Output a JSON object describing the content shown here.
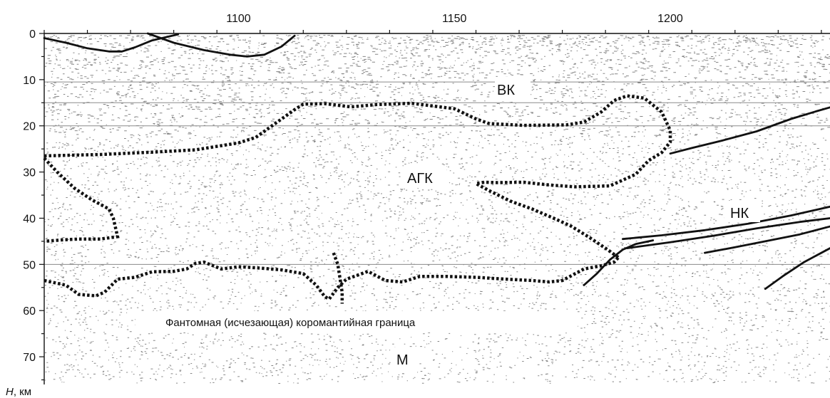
{
  "x_axis": {
    "ticks": [
      1100,
      1150,
      1200
    ],
    "range": [
      1055,
      1237
    ]
  },
  "y_axis": {
    "ticks": [
      0,
      10,
      20,
      30,
      40,
      50,
      60,
      70
    ],
    "range": [
      0,
      76
    ],
    "label_italic": "H",
    "label_unit": ", км"
  },
  "zones": {
    "vk": "ВК",
    "agk": "АГК",
    "nk": "НК",
    "m": "М"
  },
  "note": "Фантомная (исчезающая) коромантийная граница",
  "colors": {
    "ink": "#111111",
    "noise": "#222222",
    "background": "#ffffff",
    "gridline": "#8a8a8a"
  },
  "horizontal_lines": [
    10.5,
    15,
    20,
    50
  ],
  "dotted_boundaries": [
    {
      "name": "upper-boundary",
      "points": [
        [
          1055,
          26.5
        ],
        [
          1068,
          26.2
        ],
        [
          1080,
          25.7
        ],
        [
          1090,
          25.2
        ],
        [
          1100,
          23.7
        ],
        [
          1104,
          22.5
        ],
        [
          1107,
          20.5
        ],
        [
          1110,
          18.5
        ],
        [
          1113,
          16.5
        ],
        [
          1115,
          15.3
        ],
        [
          1120,
          15.2
        ],
        [
          1126,
          15.9
        ],
        [
          1132,
          15.4
        ],
        [
          1140,
          15.1
        ],
        [
          1150,
          16.3
        ],
        [
          1155,
          18.5
        ],
        [
          1158,
          19.5
        ],
        [
          1166,
          19.9
        ],
        [
          1176,
          19.8
        ],
        [
          1180,
          19.2
        ],
        [
          1184,
          17
        ],
        [
          1187,
          14.5
        ],
        [
          1190,
          13.5
        ],
        [
          1194,
          14
        ],
        [
          1198,
          17
        ],
        [
          1200,
          21
        ],
        [
          1200,
          23.5
        ],
        [
          1198,
          25.8
        ],
        [
          1195,
          27.5
        ],
        [
          1192,
          30.5
        ],
        [
          1186,
          33
        ],
        [
          1178,
          33.2
        ],
        [
          1172,
          32.8
        ],
        [
          1166,
          32.2
        ],
        [
          1160,
          32.3
        ],
        [
          1157,
          32.2
        ],
        [
          1155,
          32.5
        ],
        [
          1158,
          34
        ],
        [
          1163,
          36.3
        ],
        [
          1168,
          38
        ],
        [
          1173,
          40
        ],
        [
          1177,
          41.7
        ],
        [
          1181,
          44
        ],
        [
          1185,
          46.5
        ],
        [
          1188,
          48.5
        ]
      ]
    },
    {
      "name": "left-lobe",
      "points": [
        [
          1055,
          27
        ],
        [
          1058,
          30
        ],
        [
          1062,
          33.5
        ],
        [
          1066,
          36
        ],
        [
          1070,
          38
        ],
        [
          1071,
          40
        ],
        [
          1072,
          44
        ],
        [
          1068,
          44.5
        ],
        [
          1063,
          44.5
        ],
        [
          1059,
          44.7
        ],
        [
          1055,
          45
        ]
      ]
    },
    {
      "name": "lower-boundary",
      "points": [
        [
          1055,
          53.5
        ],
        [
          1060,
          54.5
        ],
        [
          1063,
          56.5
        ],
        [
          1067,
          56.8
        ],
        [
          1069,
          56
        ],
        [
          1072,
          53.2
        ],
        [
          1076,
          52.8
        ],
        [
          1080,
          51.6
        ],
        [
          1085,
          51.5
        ],
        [
          1088,
          51
        ],
        [
          1090,
          49.8
        ],
        [
          1092,
          49.5
        ],
        [
          1096,
          51
        ],
        [
          1100,
          50.5
        ],
        [
          1105,
          50.8
        ],
        [
          1110,
          51.2
        ],
        [
          1115,
          52
        ],
        [
          1118,
          54.5
        ],
        [
          1120,
          57
        ],
        [
          1121,
          57.5
        ],
        [
          1123,
          55
        ],
        [
          1125,
          53.2
        ],
        [
          1128,
          52.2
        ],
        [
          1130,
          51.5
        ],
        [
          1134,
          53.5
        ],
        [
          1138,
          53.8
        ],
        [
          1142,
          52.6
        ],
        [
          1148,
          52.6
        ],
        [
          1155,
          52.8
        ],
        [
          1162,
          53.2
        ],
        [
          1168,
          53.5
        ],
        [
          1172,
          53.8
        ],
        [
          1175,
          53.5
        ],
        [
          1180,
          51
        ],
        [
          1184,
          50.3
        ],
        [
          1187,
          49.5
        ],
        [
          1188,
          48.5
        ]
      ]
    },
    {
      "name": "lower-dip",
      "points": [
        [
          1122,
          47.5
        ],
        [
          1123,
          50
        ],
        [
          1123.5,
          53
        ],
        [
          1124,
          56
        ],
        [
          1124,
          58.5
        ]
      ]
    }
  ],
  "solid_lines": [
    {
      "name": "top-arc-left",
      "points": [
        [
          1055,
          1
        ],
        [
          1060,
          2
        ],
        [
          1065,
          3.2
        ],
        [
          1070,
          3.9
        ],
        [
          1073,
          3.9
        ],
        [
          1076,
          3
        ],
        [
          1080,
          1.5
        ],
        [
          1086,
          0.2
        ]
      ]
    },
    {
      "name": "top-arc-right",
      "points": [
        [
          1079,
          0
        ],
        [
          1085,
          2
        ],
        [
          1092,
          3.6
        ],
        [
          1098,
          4.6
        ],
        [
          1102,
          5
        ],
        [
          1106,
          4.6
        ],
        [
          1110,
          2.8
        ],
        [
          1113,
          0.5
        ]
      ]
    },
    {
      "name": "nk-upper",
      "points": [
        [
          1200,
          26
        ],
        [
          1205,
          24.8
        ],
        [
          1212,
          23.2
        ],
        [
          1220,
          21.2
        ],
        [
          1228,
          18.5
        ],
        [
          1234,
          16.8
        ],
        [
          1237,
          16
        ]
      ]
    },
    {
      "name": "nk-lower-1",
      "points": [
        [
          1189,
          44.5
        ],
        [
          1198,
          43.7
        ],
        [
          1208,
          42.6
        ],
        [
          1218,
          41.2
        ],
        [
          1228,
          39.4
        ],
        [
          1237,
          37.5
        ]
      ]
    },
    {
      "name": "nk-lower-2",
      "points": [
        [
          1190,
          46.5
        ],
        [
          1200,
          45.2
        ],
        [
          1210,
          43.8
        ],
        [
          1220,
          42.2
        ],
        [
          1230,
          40.8
        ],
        [
          1237,
          40
        ]
      ]
    },
    {
      "name": "nk-curve",
      "points": [
        [
          1180,
          54.5
        ],
        [
          1183,
          52
        ],
        [
          1186,
          49
        ],
        [
          1189,
          46.8
        ],
        [
          1192,
          45.6
        ],
        [
          1196,
          44.8
        ]
      ]
    },
    {
      "name": "nk-lower-3",
      "points": [
        [
          1208,
          47.5
        ],
        [
          1215,
          46.3
        ],
        [
          1222,
          45
        ],
        [
          1230,
          43.5
        ],
        [
          1237,
          41.8
        ]
      ]
    },
    {
      "name": "nk-lower-4",
      "points": [
        [
          1222,
          55.3
        ],
        [
          1226,
          52.6
        ],
        [
          1231,
          49.5
        ],
        [
          1237,
          46.5
        ]
      ]
    }
  ]
}
